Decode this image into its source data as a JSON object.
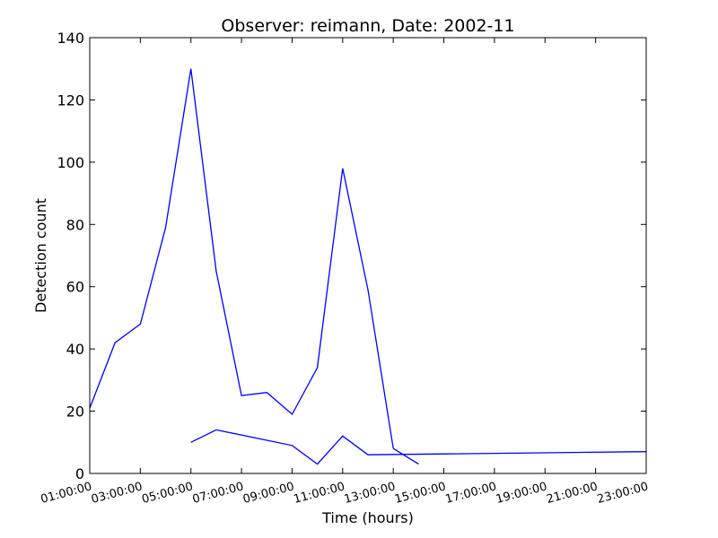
{
  "chart_data": {
    "type": "line",
    "title": "Observer: reimann, Date: 2002-11",
    "xlabel": "Time (hours)",
    "ylabel": "Detection count",
    "xlim_hours": [
      1,
      23
    ],
    "ylim": [
      0,
      140
    ],
    "y_ticks": [
      0,
      20,
      40,
      60,
      80,
      100,
      120,
      140
    ],
    "x_ticks": [
      {
        "hour": 1,
        "label": "01:00:00"
      },
      {
        "hour": 3,
        "label": "03:00:00"
      },
      {
        "hour": 5,
        "label": "05:00:00"
      },
      {
        "hour": 7,
        "label": "07:00:00"
      },
      {
        "hour": 9,
        "label": "09:00:00"
      },
      {
        "hour": 11,
        "label": "11:00:00"
      },
      {
        "hour": 13,
        "label": "13:00:00"
      },
      {
        "hour": 15,
        "label": "15:00:00"
      },
      {
        "hour": 17,
        "label": "17:00:00"
      },
      {
        "hour": 19,
        "label": "19:00:00"
      },
      {
        "hour": 21,
        "label": "21:00:00"
      },
      {
        "hour": 23,
        "label": "23:00:00"
      }
    ],
    "grid": false,
    "series": [
      {
        "color": "#0000ff",
        "x": [
          1,
          2,
          3,
          4,
          5,
          6,
          7,
          8,
          9,
          10,
          11,
          12,
          13
        ],
        "values": [
          21,
          42,
          48,
          79,
          130,
          65,
          25,
          26,
          19,
          34,
          98,
          59,
          8
        ]
      },
      {
        "color": "#0000ff",
        "x": [
          5,
          6,
          9,
          10,
          11,
          12,
          23
        ],
        "values": [
          10,
          14,
          9,
          3,
          12,
          6,
          7
        ]
      },
      {
        "color": "#0000ff",
        "x": [
          13,
          14
        ],
        "values": [
          8,
          3
        ]
      }
    ]
  }
}
